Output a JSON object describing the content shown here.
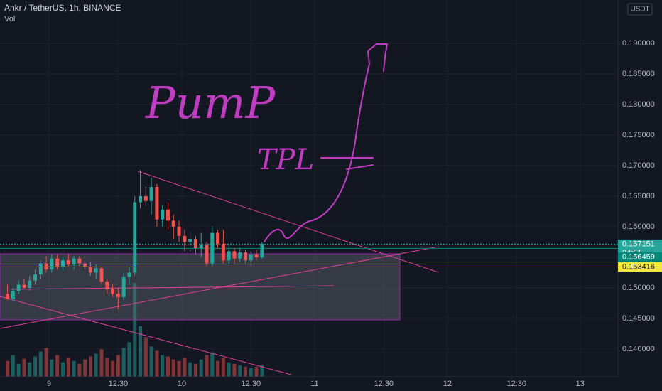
{
  "chart_data": {
    "type": "candlestick",
    "title": "Ankr / TetherUS, 1h, BINANCE",
    "volume_label": "Vol",
    "currency": "USDT",
    "x": [
      -7.5,
      -6.5,
      -5.5,
      -4.5,
      -3.5,
      -2.5,
      -1.5,
      -0.5,
      0.5,
      1.5,
      2.5,
      3.5,
      4.5,
      5.5,
      6.5,
      7.5,
      8.5,
      9.5,
      10.5,
      11.5,
      12.5,
      13.5,
      14.5,
      15.5,
      16.5,
      17.5,
      18.5,
      19.5,
      20.5,
      21.5,
      22.5,
      23.5,
      24.5,
      25.5,
      26.5,
      27.5,
      28.5,
      29.5,
      30.5,
      31.5,
      32.5,
      33.5,
      34.5,
      35.5,
      36.5,
      37.5,
      38.5
    ],
    "open": [
      0.149,
      0.1482,
      0.1495,
      0.1505,
      0.15,
      0.1512,
      0.1522,
      0.154,
      0.153,
      0.1548,
      0.1535,
      0.1545,
      0.1538,
      0.1548,
      0.154,
      0.1535,
      0.1525,
      0.1532,
      0.151,
      0.1498,
      0.149,
      0.1485,
      0.1518,
      0.1525,
      0.164,
      0.165,
      0.1642,
      0.1665,
      0.1612,
      0.1628,
      0.161,
      0.16,
      0.1585,
      0.1575,
      0.158,
      0.1565,
      0.157,
      0.154,
      0.159,
      0.1572,
      0.1545,
      0.156,
      0.1548,
      0.1558,
      0.1545,
      0.1555,
      0.155
    ],
    "high": [
      0.1505,
      0.15,
      0.1512,
      0.1515,
      0.152,
      0.153,
      0.1545,
      0.1552,
      0.1555,
      0.1555,
      0.155,
      0.1555,
      0.1552,
      0.1552,
      0.1545,
      0.1542,
      0.1538,
      0.1535,
      0.1515,
      0.1505,
      0.15,
      0.1525,
      0.1535,
      0.165,
      0.1693,
      0.1665,
      0.168,
      0.167,
      0.1635,
      0.164,
      0.162,
      0.161,
      0.1595,
      0.159,
      0.1585,
      0.159,
      0.1575,
      0.16,
      0.1595,
      0.1595,
      0.157,
      0.1565,
      0.1565,
      0.1562,
      0.156,
      0.1562,
      0.1575
    ],
    "low": [
      0.148,
      0.1478,
      0.149,
      0.1498,
      0.1495,
      0.1505,
      0.1515,
      0.1525,
      0.1525,
      0.153,
      0.1528,
      0.1535,
      0.153,
      0.1535,
      0.153,
      0.152,
      0.1515,
      0.1505,
      0.149,
      0.1485,
      0.1465,
      0.148,
      0.1505,
      0.152,
      0.163,
      0.1635,
      0.162,
      0.16,
      0.16,
      0.1595,
      0.158,
      0.1575,
      0.156,
      0.156,
      0.1555,
      0.155,
      0.1535,
      0.1535,
      0.1565,
      0.154,
      0.1538,
      0.154,
      0.1542,
      0.154,
      0.1535,
      0.1545,
      0.1548
    ],
    "close": [
      0.1482,
      0.1495,
      0.1505,
      0.15,
      0.1512,
      0.1522,
      0.154,
      0.153,
      0.1548,
      0.1535,
      0.1545,
      0.1538,
      0.1548,
      0.154,
      0.1535,
      0.1525,
      0.1532,
      0.151,
      0.1498,
      0.149,
      0.1485,
      0.1518,
      0.1525,
      0.164,
      0.165,
      0.1642,
      0.1665,
      0.1612,
      0.1628,
      0.161,
      0.16,
      0.1585,
      0.1575,
      0.158,
      0.1565,
      0.157,
      0.154,
      0.159,
      0.1572,
      0.1545,
      0.156,
      0.1548,
      0.1558,
      0.1545,
      0.1555,
      0.155,
      0.1572
    ],
    "volume": [
      22,
      30,
      18,
      25,
      20,
      28,
      35,
      40,
      24,
      30,
      20,
      26,
      22,
      18,
      24,
      28,
      32,
      38,
      26,
      22,
      30,
      40,
      48,
      130,
      70,
      55,
      42,
      36,
      30,
      28,
      24,
      22,
      26,
      20,
      18,
      24,
      30,
      34,
      22,
      26,
      20,
      18,
      16,
      14,
      12,
      14,
      16
    ],
    "up_color": "#26a69a",
    "down_color": "#ef5350",
    "xlim": [
      -8.86,
      102.83
    ],
    "xticks": [
      {
        "value": 0,
        "label": "9"
      },
      {
        "value": 12.5,
        "label": "12:30"
      },
      {
        "value": 24,
        "label": "10"
      },
      {
        "value": 36.5,
        "label": "12:30"
      },
      {
        "value": 48,
        "label": "11"
      },
      {
        "value": 60.5,
        "label": "12:30"
      },
      {
        "value": 72,
        "label": "12"
      },
      {
        "value": 84.5,
        "label": "12:30"
      },
      {
        "value": 96,
        "label": "13"
      }
    ],
    "ylim": [
      0.13545,
      0.19709
    ],
    "yticks": [
      {
        "value": 0.14,
        "label": "0.140000"
      },
      {
        "value": 0.145,
        "label": "0.145000"
      },
      {
        "value": 0.15,
        "label": "0.150000"
      },
      {
        "value": 0.155,
        "label": "0.155000"
      },
      {
        "value": 0.16,
        "label": "0.160000"
      },
      {
        "value": 0.165,
        "label": "0.165000"
      },
      {
        "value": 0.17,
        "label": "0.170000"
      },
      {
        "value": 0.175,
        "label": "0.175000"
      },
      {
        "value": 0.18,
        "label": "0.180000"
      },
      {
        "value": 0.185,
        "label": "0.185000"
      },
      {
        "value": 0.19,
        "label": "0.190000"
      }
    ],
    "price_lines": [
      {
        "value": 0.157151,
        "color": "#26a69a"
      },
      {
        "value": 0.156459,
        "color": "#00897b"
      },
      {
        "value": 0.153416,
        "color": "#f5e73b"
      }
    ],
    "countdown": "04:51",
    "annotations": [
      "PumP",
      "TPL"
    ]
  }
}
